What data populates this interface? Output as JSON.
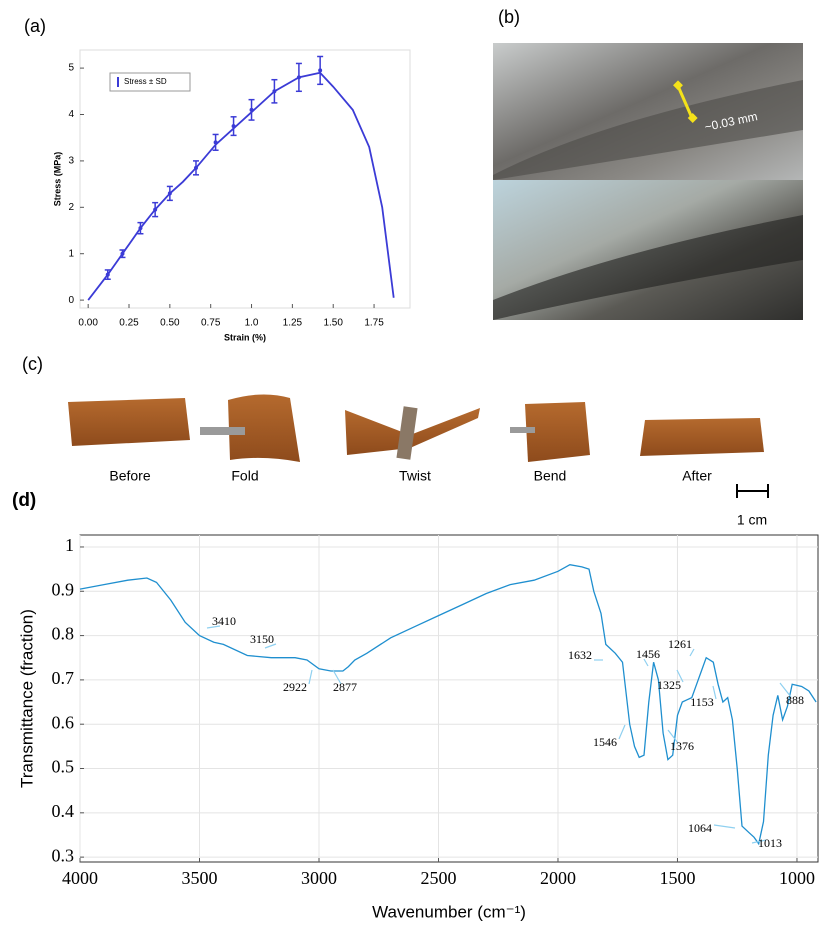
{
  "panels": {
    "a": "(a)",
    "b": "(b)",
    "c": "(c)",
    "d": "(d)"
  },
  "photo_b": {
    "annotation": "~0.03 mm"
  },
  "photo_c": {
    "labels": [
      "Before",
      "Fold",
      "Twist",
      "Bend",
      "After"
    ],
    "scale": "1 cm"
  },
  "chart_data": [
    {
      "type": "line",
      "x_label": "Strain (%)",
      "y_label": "Stress (MPa)",
      "xlim": [
        -0.05,
        1.97
      ],
      "ylim": [
        -0.17,
        5.39
      ],
      "xticks": [
        {
          "value": 0,
          "label": "0.00"
        },
        {
          "value": 0.25,
          "label": "0.25"
        },
        {
          "value": 0.5,
          "label": "0.50"
        },
        {
          "value": 0.75,
          "label": "0.75"
        },
        {
          "value": 1,
          "label": "1.0"
        },
        {
          "value": 1.25,
          "label": "1.25"
        },
        {
          "value": 1.5,
          "label": "1.50"
        },
        {
          "value": 1.75,
          "label": "1.75"
        }
      ],
      "yticks": [
        0,
        1,
        2,
        3,
        4,
        5
      ],
      "grid": false,
      "legend": "upper left",
      "curve": {
        "color": "#3b3bd6",
        "x": [
          0,
          0.12,
          0.21,
          0.32,
          0.41,
          0.5,
          0.58,
          0.66,
          0.78,
          0.89,
          1.0,
          1.14,
          1.29,
          1.42,
          1.5,
          1.62,
          1.72,
          1.8,
          1.87
        ],
        "values": [
          0,
          0.55,
          1.0,
          1.55,
          1.95,
          2.3,
          2.55,
          2.85,
          3.35,
          3.7,
          4.05,
          4.5,
          4.8,
          4.9,
          4.6,
          4.1,
          3.3,
          2.0,
          0.05
        ]
      },
      "series": [
        {
          "name": "Stress ± SD",
          "color": "#3b3bd6",
          "x": [
            0.12,
            0.21,
            0.32,
            0.41,
            0.5,
            0.66,
            0.78,
            0.89,
            1.0,
            1.14,
            1.29,
            1.42
          ],
          "values": [
            0.55,
            1.0,
            1.55,
            1.95,
            2.3,
            2.85,
            3.4,
            3.75,
            4.1,
            4.5,
            4.8,
            4.95
          ],
          "errors": [
            0.1,
            0.08,
            0.12,
            0.15,
            0.15,
            0.15,
            0.17,
            0.2,
            0.22,
            0.25,
            0.3,
            0.3
          ]
        }
      ]
    },
    {
      "type": "line",
      "x_label": "Wavenumber (cm⁻¹)",
      "y_label": "Transmittance (fraction)",
      "xlim": [
        4000,
        912
      ],
      "ylim": [
        0.289,
        1.027
      ],
      "xticks": [
        4000,
        3500,
        3000,
        2500,
        2000,
        1500,
        1000
      ],
      "yticks": [
        0.3,
        0.4,
        0.5,
        0.6,
        0.7,
        0.8,
        0.9,
        1
      ],
      "grid": true,
      "series": [
        {
          "color": "#1f8fcf",
          "x": [
            4000,
            3900,
            3800,
            3720,
            3680,
            3620,
            3560,
            3500,
            3440,
            3400,
            3300,
            3200,
            3100,
            3050,
            3000,
            2950,
            2900,
            2877,
            2850,
            2800,
            2700,
            2600,
            2500,
            2400,
            2300,
            2200,
            2100,
            2000,
            1950,
            1900,
            1870,
            1850,
            1820,
            1800,
            1760,
            1730,
            1700,
            1680,
            1660,
            1640,
            1620,
            1600,
            1580,
            1560,
            1540,
            1520,
            1500,
            1480,
            1460,
            1440,
            1420,
            1400,
            1380,
            1350,
            1330,
            1310,
            1290,
            1270,
            1250,
            1230,
            1200,
            1180,
            1160,
            1140,
            1120,
            1100,
            1080,
            1060,
            1040,
            1020,
            980,
            950,
            920
          ],
          "values": [
            0.905,
            0.915,
            0.925,
            0.93,
            0.92,
            0.88,
            0.83,
            0.8,
            0.785,
            0.78,
            0.755,
            0.75,
            0.75,
            0.745,
            0.725,
            0.72,
            0.72,
            0.73,
            0.745,
            0.76,
            0.795,
            0.82,
            0.845,
            0.87,
            0.895,
            0.915,
            0.925,
            0.945,
            0.96,
            0.955,
            0.95,
            0.9,
            0.85,
            0.78,
            0.76,
            0.74,
            0.6,
            0.55,
            0.525,
            0.53,
            0.65,
            0.74,
            0.7,
            0.58,
            0.52,
            0.53,
            0.62,
            0.65,
            0.655,
            0.66,
            0.69,
            0.72,
            0.75,
            0.74,
            0.69,
            0.65,
            0.66,
            0.61,
            0.5,
            0.37,
            0.355,
            0.345,
            0.33,
            0.38,
            0.53,
            0.62,
            0.665,
            0.61,
            0.64,
            0.69,
            0.685,
            0.675,
            0.65
          ]
        }
      ],
      "annotations": [
        "3410",
        "3150",
        "2922",
        "2877",
        "1632",
        "1456",
        "1325",
        "1261",
        "1153",
        "888",
        "1546",
        "1376",
        "1064",
        "1013"
      ]
    }
  ]
}
